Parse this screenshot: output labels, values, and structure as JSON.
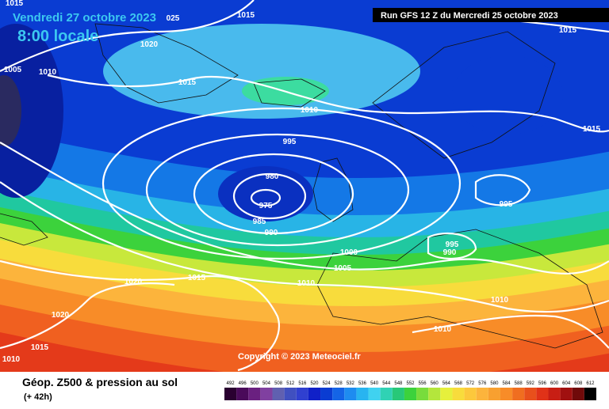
{
  "header": {
    "date": "Vendredi 27 octobre 2023",
    "time": "8:00 locale",
    "run": "Run GFS 12 Z du Mercredi 25 octobre 2023"
  },
  "isobar_labels": [
    "1015",
    "025",
    "1020",
    "1005",
    "1010",
    "1015",
    "1010",
    "995",
    "980",
    "975",
    "985",
    "990",
    "1000",
    "1005",
    "1010",
    "1015",
    "1020",
    "1020",
    "1015",
    "1010",
    "1010",
    "1010",
    "995",
    "990",
    "995",
    "1015",
    "1015",
    "1015"
  ],
  "copyright": "Copyright © 2023 Meteociel.fr",
  "footer": {
    "title": "Géop. Z500 & pression au sol",
    "lead": "(+ 42h)"
  },
  "colorbar": {
    "labels": [
      492,
      496,
      500,
      504,
      508,
      512,
      516,
      520,
      524,
      528,
      532,
      536,
      540,
      544,
      548,
      552,
      556,
      560,
      564,
      568,
      572,
      576,
      580,
      584,
      588,
      592,
      596,
      600,
      604,
      608,
      612
    ],
    "colors": [
      "#2a0030",
      "#4a0a5a",
      "#6a2080",
      "#8040a0",
      "#6060b0",
      "#4050c0",
      "#3040d0",
      "#1020c8",
      "#0a3cd2",
      "#1464e6",
      "#1e8cf0",
      "#28b4f0",
      "#40d2f0",
      "#30d2b4",
      "#28c878",
      "#3cd23c",
      "#78dc3c",
      "#b4e63c",
      "#e6f03c",
      "#f8dc3c",
      "#fcc83c",
      "#fcb43c",
      "#f8a030",
      "#f88c28",
      "#f06e20",
      "#e8501c",
      "#e03218",
      "#c81e14",
      "#a01010",
      "#700a0a",
      "#000000"
    ]
  }
}
